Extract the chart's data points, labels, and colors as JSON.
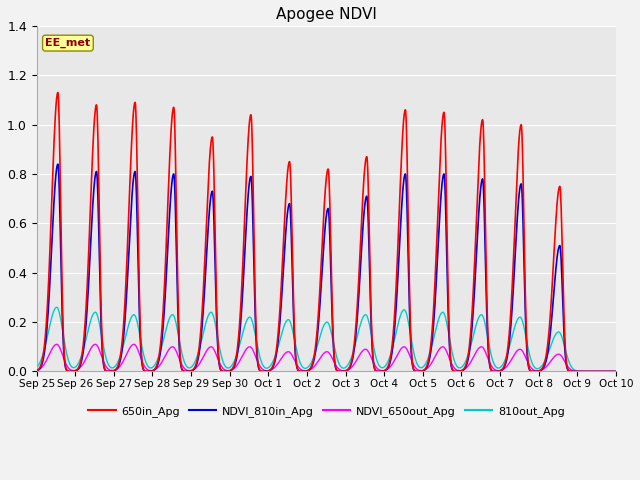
{
  "title": "Apogee NDVI",
  "annotation_text": "EE_met",
  "annotation_color": "#8B0000",
  "annotation_bg": "#FFFF99",
  "annotation_border": "#8B8B00",
  "ylim": [
    0.0,
    1.4
  ],
  "yticks": [
    0.0,
    0.2,
    0.4,
    0.6,
    0.8,
    1.0,
    1.2,
    1.4
  ],
  "xtick_labels": [
    "Sep 25",
    "Sep 26",
    "Sep 27",
    "Sep 28",
    "Sep 29",
    "Sep 30",
    "Oct 1",
    "Oct 2",
    "Oct 3",
    "Oct 4",
    "Oct 5",
    "Oct 6",
    "Oct 7",
    "Oct 8",
    "Oct 9",
    "Oct 10"
  ],
  "fig_facecolor": "#F2F2F2",
  "axes_facecolor": "#E8E8E8",
  "grid_color": "#FFFFFF",
  "series_colors": [
    "#FF0000",
    "#0000DD",
    "#FF00FF",
    "#00CCCC"
  ],
  "series_lw": [
    1.2,
    1.2,
    1.0,
    1.0
  ],
  "legend_labels": [
    "650in_Apg",
    "NDVI_810in_Apg",
    "NDVI_650out_Apg",
    "810out_Apg"
  ],
  "peak_650in": [
    1.13,
    1.08,
    1.09,
    1.07,
    0.95,
    1.04,
    0.85,
    0.82,
    0.87,
    1.06,
    1.05,
    1.02,
    1.0,
    0.75,
    0.0
  ],
  "peak_810in": [
    0.84,
    0.81,
    0.81,
    0.8,
    0.73,
    0.79,
    0.68,
    0.66,
    0.71,
    0.8,
    0.8,
    0.78,
    0.76,
    0.51,
    0.0
  ],
  "peak_650out": [
    0.11,
    0.11,
    0.11,
    0.1,
    0.1,
    0.1,
    0.08,
    0.08,
    0.09,
    0.1,
    0.1,
    0.1,
    0.09,
    0.07,
    0.0
  ],
  "peak_810out": [
    0.26,
    0.24,
    0.23,
    0.23,
    0.24,
    0.22,
    0.21,
    0.2,
    0.23,
    0.25,
    0.24,
    0.23,
    0.22,
    0.16,
    0.0
  ],
  "n_days": 15,
  "pts_per_day": 200
}
